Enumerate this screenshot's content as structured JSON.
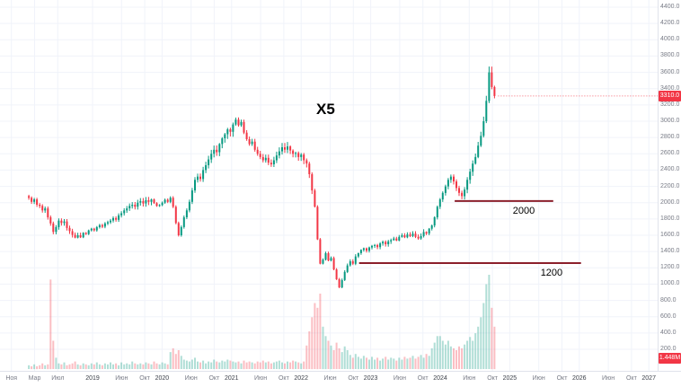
{
  "chart_data": {
    "type": "candlestick",
    "title": "X5",
    "last_price": "3310.0",
    "last_volume": "1.448M",
    "y_axis": {
      "min": 200,
      "max": 4400,
      "step": 200
    },
    "x_axis_labels": [
      {
        "text": "Ноя",
        "m": -2,
        "year": false
      },
      {
        "text": "Мар",
        "m": 2,
        "year": false
      },
      {
        "text": "Июл",
        "m": 6,
        "year": false
      },
      {
        "text": "2019",
        "m": 12,
        "year": true
      },
      {
        "text": "Июн",
        "m": 17,
        "year": false
      },
      {
        "text": "Окт",
        "m": 21,
        "year": false
      },
      {
        "text": "2020",
        "m": 24,
        "year": true
      },
      {
        "text": "Июн",
        "m": 29,
        "year": false
      },
      {
        "text": "Окт",
        "m": 33,
        "year": false
      },
      {
        "text": "2021",
        "m": 36,
        "year": true
      },
      {
        "text": "Июн",
        "m": 41,
        "year": false
      },
      {
        "text": "Окт",
        "m": 45,
        "year": false
      },
      {
        "text": "2022",
        "m": 48,
        "year": true
      },
      {
        "text": "Июн",
        "m": 53,
        "year": false
      },
      {
        "text": "Окт",
        "m": 57,
        "year": false
      },
      {
        "text": "2023",
        "m": 60,
        "year": true
      },
      {
        "text": "Июн",
        "m": 65,
        "year": false
      },
      {
        "text": "Окт",
        "m": 69,
        "year": false
      },
      {
        "text": "2024",
        "m": 72,
        "year": true
      },
      {
        "text": "Июн",
        "m": 77,
        "year": false
      },
      {
        "text": "Окт",
        "m": 81,
        "year": false
      },
      {
        "text": "2025",
        "m": 84,
        "year": true
      },
      {
        "text": "Июн",
        "m": 89,
        "year": false
      },
      {
        "text": "Окт",
        "m": 93,
        "year": false
      },
      {
        "text": "2026",
        "m": 96,
        "year": true
      },
      {
        "text": "Июн",
        "m": 101,
        "year": false
      },
      {
        "text": "Окт",
        "m": 105,
        "year": false
      },
      {
        "text": "2027",
        "m": 108,
        "year": true
      }
    ],
    "levels": [
      {
        "label": "2000",
        "price": 2020,
        "m_start": 74.5,
        "m_end": 91.5
      },
      {
        "label": "1200",
        "price": 1258,
        "m_start": 58,
        "m_end": 96.3
      }
    ],
    "series": {
      "closes": [
        2060,
        2010,
        2040,
        1975,
        1960,
        1905,
        1930,
        1820,
        1745,
        1640,
        1700,
        1780,
        1750,
        1770,
        1690,
        1650,
        1605,
        1570,
        1600,
        1575,
        1630,
        1615,
        1660,
        1680,
        1660,
        1700,
        1725,
        1705,
        1745,
        1760,
        1780,
        1810,
        1790,
        1845,
        1870,
        1905,
        1930,
        1960,
        1975,
        1950,
        2000,
        2020,
        1990,
        2030,
        2010,
        2040,
        1995,
        1960,
        1970,
        2000,
        2035,
        2010,
        2060,
        1950,
        1750,
        1600,
        1700,
        1820,
        1905,
        2010,
        2150,
        2280,
        2320,
        2290,
        2400,
        2460,
        2530,
        2600,
        2650,
        2620,
        2720,
        2790,
        2840,
        2900,
        2870,
        2960,
        3020,
        2950,
        2990,
        2860,
        2780,
        2720,
        2750,
        2650,
        2600,
        2560,
        2520,
        2550,
        2490,
        2470,
        2520,
        2580,
        2630,
        2680,
        2650,
        2690,
        2640,
        2600,
        2610,
        2560,
        2590,
        2520,
        2480,
        2350,
        2150,
        1950,
        1550,
        1250,
        1300,
        1380,
        1290,
        1320,
        1180,
        1060,
        960,
        1050,
        1150,
        1230,
        1280,
        1250,
        1340,
        1380,
        1420,
        1440,
        1410,
        1450,
        1470,
        1480,
        1455,
        1500,
        1520,
        1490,
        1525,
        1540,
        1560,
        1535,
        1580,
        1600,
        1575,
        1610,
        1590,
        1620,
        1580,
        1560,
        1590,
        1640,
        1620,
        1680,
        1720,
        1820,
        1950,
        2040,
        2120,
        2200,
        2280,
        2320,
        2260,
        2180,
        2120,
        2080,
        2160,
        2280,
        2380,
        2480,
        2560,
        2700,
        2820,
        3000,
        3250,
        3600,
        3420,
        3310
      ],
      "volumes": [
        4,
        3,
        5,
        3,
        4,
        6,
        4,
        5,
        95,
        30,
        12,
        6,
        5,
        7,
        4,
        5,
        6,
        8,
        5,
        4,
        6,
        5,
        4,
        6,
        5,
        7,
        5,
        4,
        6,
        5,
        7,
        5,
        6,
        4,
        7,
        5,
        6,
        5,
        8,
        6,
        5,
        6,
        5,
        7,
        6,
        5,
        8,
        6,
        5,
        7,
        6,
        5,
        18,
        22,
        16,
        20,
        14,
        10,
        9,
        8,
        10,
        12,
        8,
        7,
        9,
        6,
        8,
        7,
        10,
        8,
        7,
        9,
        8,
        10,
        9,
        8,
        7,
        8,
        6,
        9,
        7,
        8,
        7,
        6,
        8,
        7,
        9,
        7,
        8,
        6,
        7,
        8,
        9,
        7,
        6,
        8,
        7,
        9,
        8,
        7,
        6,
        8,
        25,
        40,
        55,
        70,
        65,
        80,
        45,
        35,
        30,
        25,
        20,
        28,
        22,
        18,
        24,
        20,
        15,
        12,
        16,
        13,
        11,
        14,
        12,
        10,
        13,
        10,
        12,
        9,
        11,
        13,
        10,
        12,
        11,
        9,
        12,
        10,
        13,
        11,
        12,
        14,
        11,
        13,
        15,
        12,
        16,
        14,
        22,
        28,
        35,
        35,
        30,
        26,
        30,
        24,
        22,
        20,
        24,
        22,
        26,
        30,
        34,
        30,
        38,
        45,
        55,
        70,
        90,
        100,
        65,
        45
      ]
    }
  },
  "ui": {
    "colors": {
      "up": "#089981",
      "down": "#f23645",
      "vol_up": "rgba(8,153,129,0.32)",
      "vol_down": "rgba(242,54,69,0.32)",
      "level_line": "#8b1f2b",
      "grid": "#f0f3fa",
      "axis_text": "#787b86",
      "axis_year_text": "#3c4049",
      "badge_bg": "#f23645",
      "badge_text": "#ffffff",
      "annotation_text": "#000000"
    }
  }
}
